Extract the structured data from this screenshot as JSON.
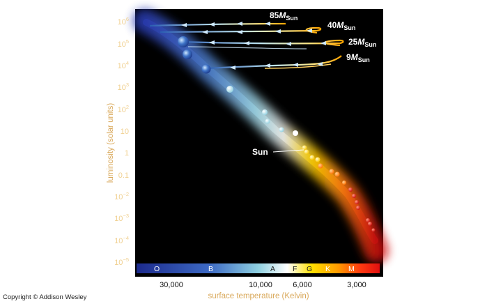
{
  "diagram": {
    "y_axis_title": "luminosity (solar units)",
    "x_axis_title": "surface temperature (Kelvin)",
    "y_ticks": [
      {
        "base": "10",
        "exp": "6"
      },
      {
        "base": "10",
        "exp": "5"
      },
      {
        "base": "10",
        "exp": "4"
      },
      {
        "base": "10",
        "exp": "3"
      },
      {
        "base": "10",
        "exp": "2"
      },
      {
        "base": "10",
        "exp": ""
      },
      {
        "base": "1",
        "exp": ""
      },
      {
        "base": "0.1",
        "exp": ""
      },
      {
        "base": "10",
        "exp": "−2"
      },
      {
        "base": "10",
        "exp": "−3"
      },
      {
        "base": "10",
        "exp": "−4"
      },
      {
        "base": "10",
        "exp": "−5"
      }
    ],
    "x_ticks": [
      "30,000",
      "10,000",
      "6,000",
      "3,000"
    ],
    "spectral_classes": [
      "O",
      "B",
      "A",
      "F",
      "G",
      "K",
      "M"
    ],
    "tracks": [
      {
        "mass": "85",
        "unit": "M",
        "sub": "Sun"
      },
      {
        "mass": "40",
        "unit": "M",
        "sub": "Sun"
      },
      {
        "mass": "25",
        "unit": "M",
        "sub": "Sun"
      },
      {
        "mass": "9",
        "unit": "M",
        "sub": "Sun"
      }
    ],
    "sun_label": "Sun",
    "colors": {
      "panel": "#000000",
      "hot": "#2a3fb0",
      "mid": "#9fd8e8",
      "solar": "#ffd200",
      "cool": "#e0200f"
    }
  },
  "copyright": "Copyright © Addison Wesley"
}
